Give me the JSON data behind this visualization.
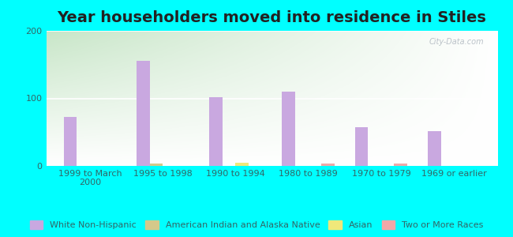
{
  "title": "Year householders moved into residence in Stiles",
  "categories": [
    "1999 to March\n2000",
    "1995 to 1998",
    "1990 to 1994",
    "1980 to 1989",
    "1970 to 1979",
    "1969 or earlier"
  ],
  "series": {
    "White Non-Hispanic": [
      72,
      155,
      102,
      110,
      57,
      52
    ],
    "American Indian and Alaska Native": [
      0,
      4,
      0,
      0,
      0,
      0
    ],
    "Asian": [
      0,
      0,
      5,
      0,
      0,
      0
    ],
    "Two or More Races": [
      0,
      0,
      0,
      4,
      3,
      0
    ]
  },
  "colors": {
    "White Non-Hispanic": "#c9a8e0",
    "American Indian and Alaska Native": "#d4c98a",
    "Asian": "#f0e87a",
    "Two or More Races": "#f0a8a8"
  },
  "ylim": [
    0,
    200
  ],
  "yticks": [
    0,
    100,
    200
  ],
  "bar_width": 0.18,
  "outer_background": "#00ffff",
  "title_fontsize": 14,
  "tick_label_fontsize": 8,
  "legend_fontsize": 8,
  "watermark": "City-Data.com"
}
